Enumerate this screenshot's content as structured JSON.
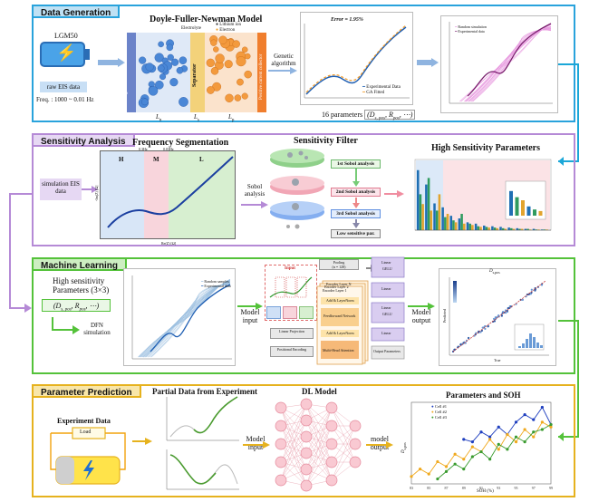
{
  "panels": {
    "p1": "Data Generation",
    "p2": "Sensitivity Analysis",
    "p3": "Machine Learning",
    "p4": "Parameter Prediction"
  },
  "dataGen": {
    "cell_label": "LGM50",
    "raw_label": "raw EIS data",
    "freq_label": "Freq. : 1000 ~ 0.01 Hz",
    "model_title": "Doyle-Fuller-Newman Model",
    "electrolyte": "Electrolyte",
    "neg_collector": "Negative current collector",
    "pos_collector": "Positive current collector",
    "separator": "Separator",
    "legend_li": "Lithium ion",
    "legend_el": "Electron",
    "ln": "L",
    "ln_sub": "n",
    "ls": "L",
    "ls_sub": "s",
    "lp": "L",
    "lp_sub": "p",
    "genetic": "Genetic algorithm",
    "error": "Error = 1.95%",
    "fit_legend1": "Experimental Data",
    "fit_legend2": "GA Fitted",
    "params16": "16 parameters",
    "params_formula": "(D",
    "params_sub": "s, pos",
    "params_tail": ", R",
    "params_sub2": "pos",
    "params_end": ", ⋯)",
    "sim_legend1": "Random simulation",
    "sim_legend2": "Experimental data"
  },
  "sens": {
    "freq_seg": "Frequency Segmentation",
    "h": "H",
    "m": "M",
    "l": "L",
    "f1": "0.3Hz",
    "f2": "0.03Hz",
    "xlabel": "Re(Z) [Ω]",
    "ylabel": "-Im(Z) [Ω]",
    "sim_eis": "simulation EIS data",
    "sobol": "Sobol analysis",
    "filter_title": "Sensitivity Filter",
    "sobol1": "1st Sobol analysis",
    "sobol2": "2nd Sobol analysis",
    "sobol3": "3rd Sobol analysis",
    "low": "Low sensitive par.",
    "hs_title": "High Sensitivity Parameters"
  },
  "ml": {
    "hs_params": "High sensitivity Parameters (3×3)",
    "formula": "(D",
    "formula_sub": "s, pos",
    "formula_tail": ", R",
    "formula_sub2": "pos",
    "formula_end": ", ⋯)",
    "dfn": "DFN simulation",
    "legend1": "Random samples",
    "legend2": "Experimental data",
    "model_input": "Model input",
    "model_output": "Model output",
    "input_label": "Input",
    "pooling": "Pooling",
    "pooling_dim": "(n = 128)",
    "encoder_n": "Encoder Layer N",
    "encoder_2": "Encoder Layer 2",
    "encoder_1": "Encoder Layer 1",
    "addnorm": "Add & LayerNorm",
    "ffn": "Feedforward Network",
    "mha": "Multi-Head Attention",
    "linear_proj": "Linear Projection",
    "pos_enc": "Positional Encoding",
    "linear": "Linear",
    "gelu": "GELU",
    "out_params": "Output Parameters",
    "chart_title": "D",
    "chart_sub": "s,pos",
    "xlab": "True",
    "ylab": "Predicted"
  },
  "pred": {
    "partial": "Partial Data from Experiment",
    "experiment": "Experiment Data",
    "load": "Load",
    "dl": "DL Model",
    "model_input": "Model input",
    "model_output": "model output",
    "chart_title": "Parameters and SOH",
    "xlab": "SOH (%)",
    "ylab": "D",
    "ylab_sub": "s,pos",
    "legend": [
      "Cell #1",
      "Cell #2",
      "Cell #3"
    ]
  },
  "colors": {
    "p1": "#29a3dc",
    "p2": "#b58ad6",
    "p3": "#54c23a",
    "p4": "#e6b21e",
    "tab1": "#bfe1f4",
    "tab2": "#e6d8f3",
    "tab3": "#cdeec2",
    "tab4": "#f8e6a9"
  },
  "chart_data": [
    {
      "type": "bar",
      "title": "High Sensitivity Parameters",
      "categories": [
        "1",
        "2",
        "3",
        "4",
        "5",
        "6",
        "7",
        "8",
        "9",
        "10",
        "11",
        "12",
        "13",
        "14",
        "15",
        "16"
      ],
      "series": [
        {
          "values": [
            0.92,
            0.7,
            0.41,
            0.35,
            0.22,
            0.18,
            0.12,
            0.1,
            0.07,
            0.06,
            0.05,
            0.04,
            0.03,
            0.02,
            0.02,
            0.01
          ]
        },
        {
          "values": [
            0.55,
            0.8,
            0.3,
            0.2,
            0.15,
            0.25,
            0.1,
            0.06,
            0.05,
            0.04,
            0.03,
            0.03,
            0.02,
            0.02,
            0.01,
            0.01
          ]
        },
        {
          "values": [
            0.4,
            0.3,
            0.55,
            0.25,
            0.12,
            0.1,
            0.08,
            0.05,
            0.04,
            0.03,
            0.02,
            0.02,
            0.02,
            0.01,
            0.01,
            0.01
          ]
        }
      ]
    },
    {
      "type": "line",
      "title": "Parameters and SOH",
      "xlabel": "SOH (%)",
      "x": [
        83,
        84,
        85,
        86,
        87,
        88,
        89,
        90,
        91,
        92,
        93,
        94,
        95,
        96,
        97,
        98,
        99
      ],
      "xlim": [
        83,
        99
      ],
      "series": [
        {
          "name": "Cell #1",
          "values": [
            null,
            null,
            null,
            null,
            null,
            null,
            3.6,
            3.5,
            3.9,
            3.7,
            4.1,
            3.8,
            4.3,
            4.6,
            4.4,
            4.9,
            4.2
          ]
        },
        {
          "name": "Cell #2",
          "values": [
            2.1,
            2.4,
            2.2,
            2.7,
            2.5,
            3.0,
            2.8,
            3.3,
            3.1,
            3.6,
            3.2,
            3.8,
            3.5,
            4.0,
            3.7,
            4.3,
            4.1
          ]
        },
        {
          "name": "Cell #3",
          "values": [
            null,
            null,
            null,
            2.0,
            2.3,
            2.6,
            2.4,
            2.9,
            3.1,
            2.8,
            3.4,
            3.2,
            3.7,
            3.5,
            3.9,
            4.0,
            4.2
          ]
        }
      ]
    }
  ]
}
